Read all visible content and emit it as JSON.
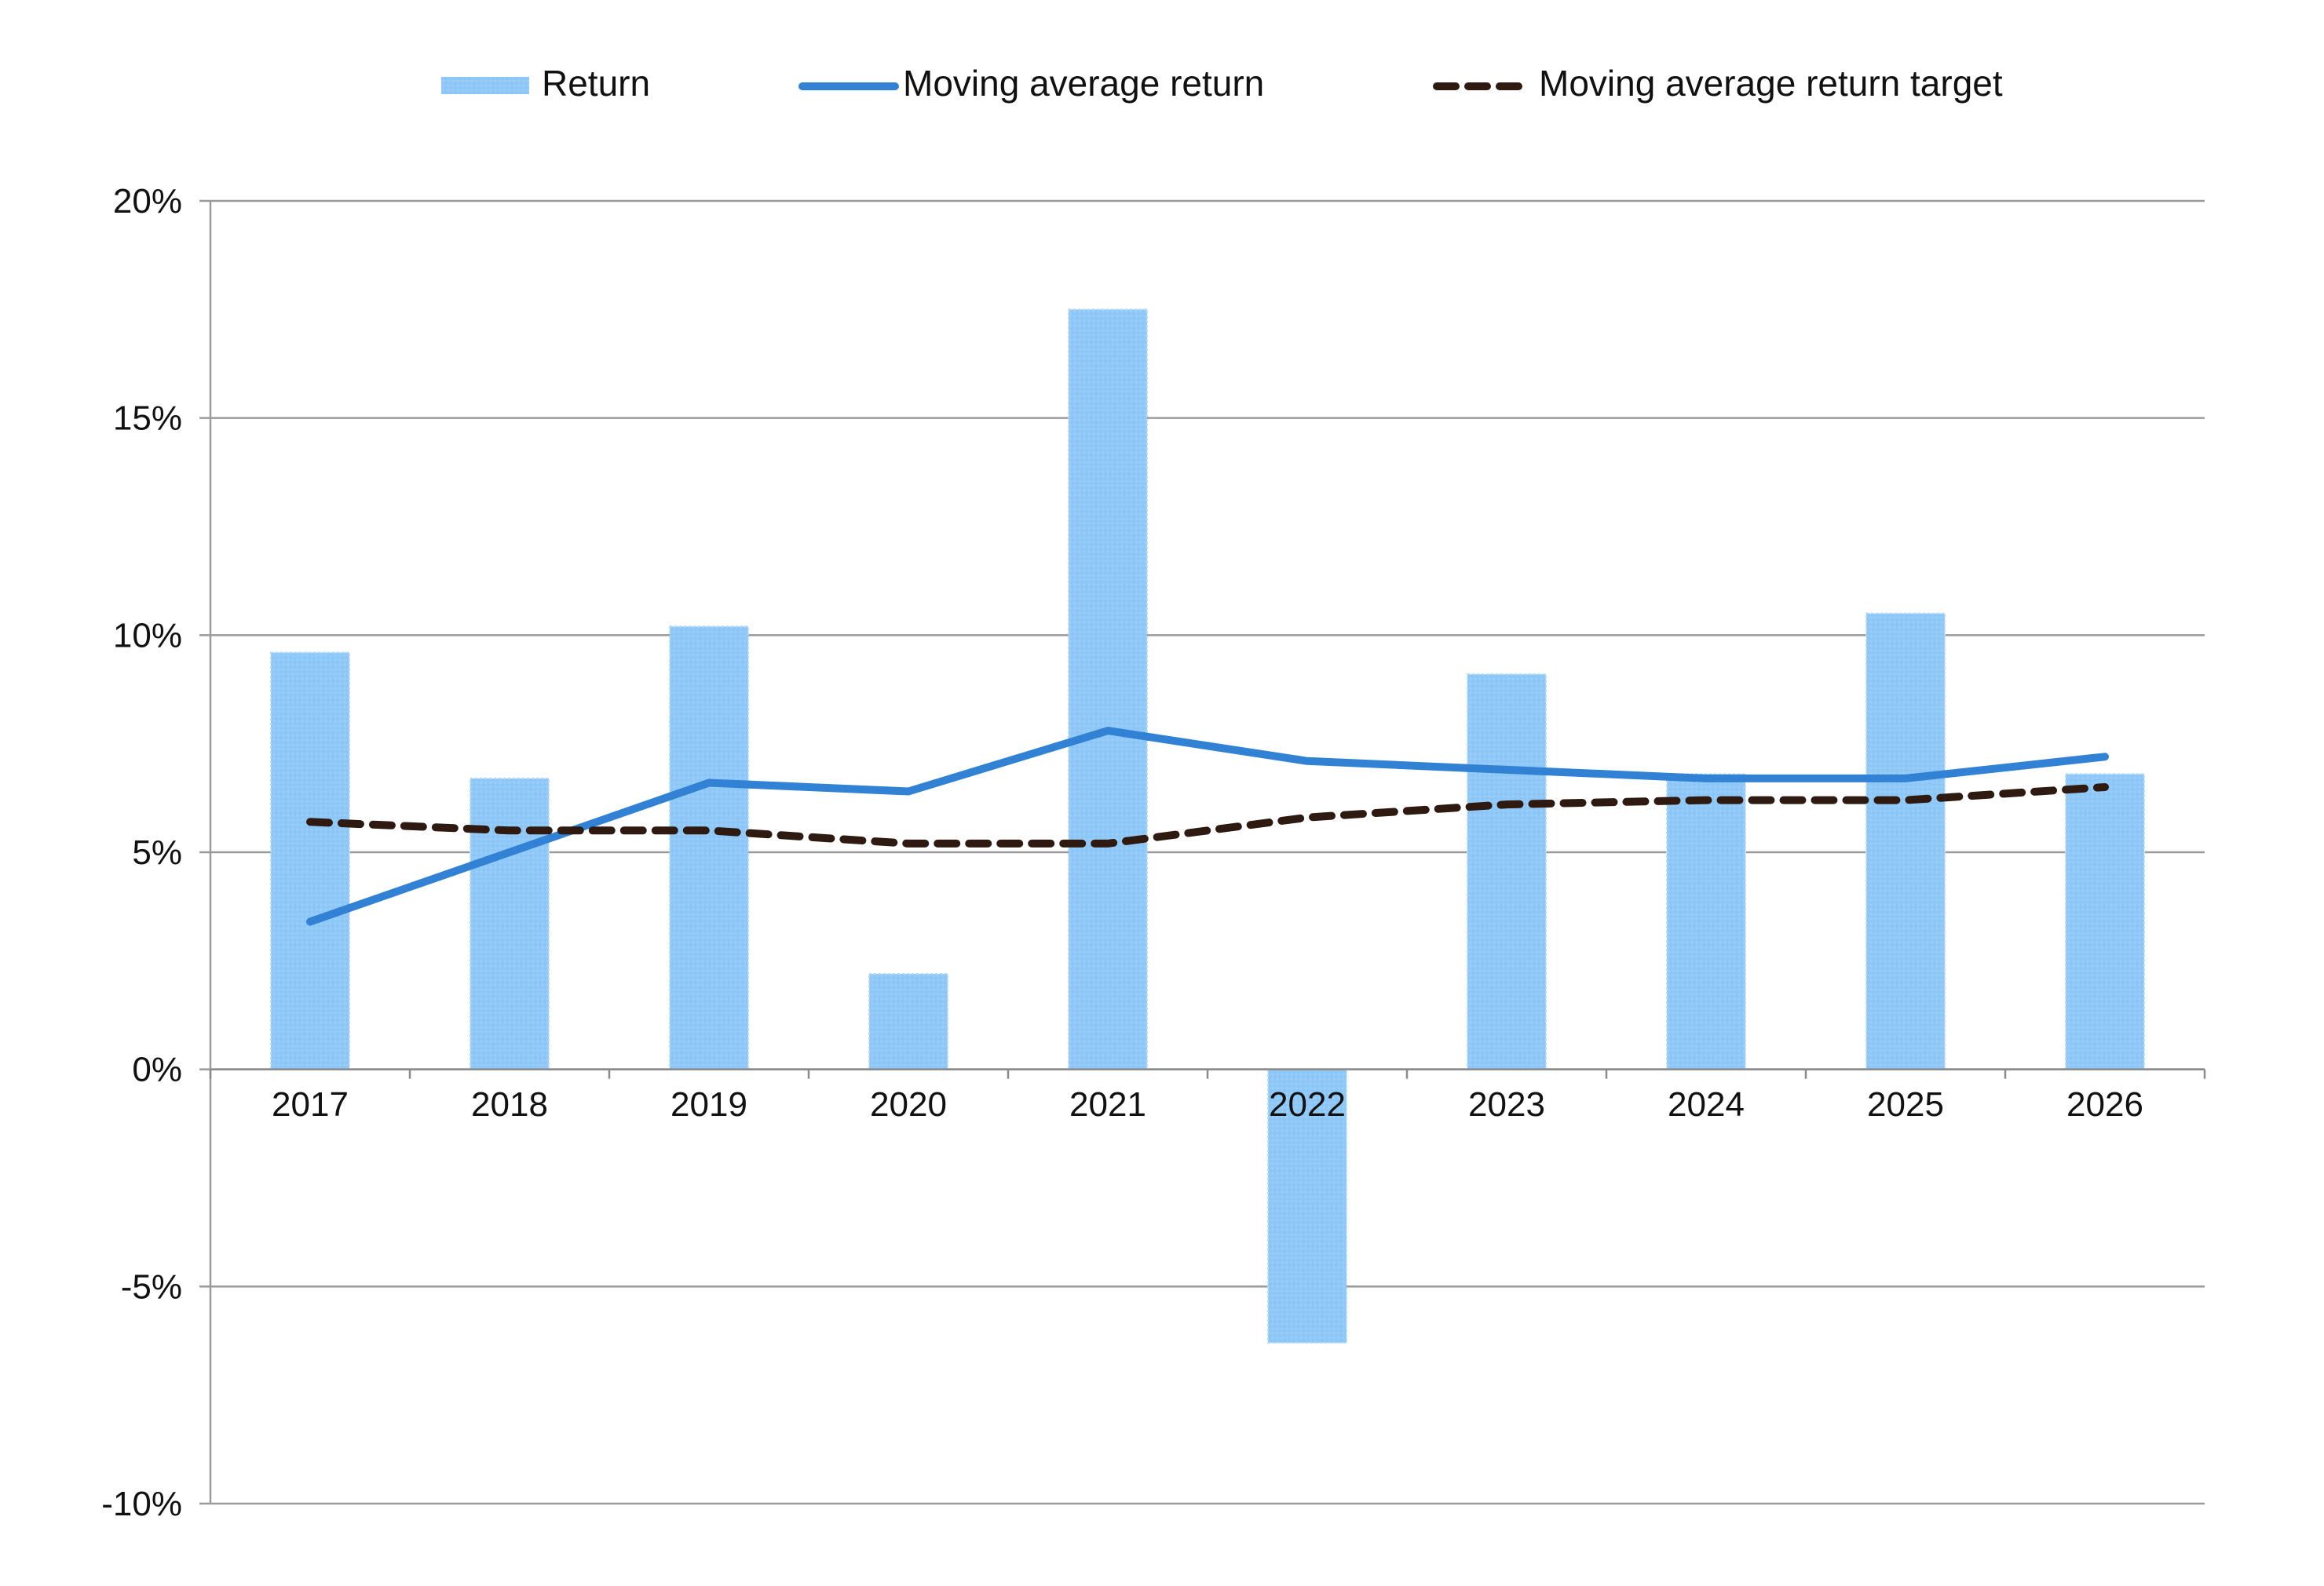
{
  "chart_data": {
    "type": "bar",
    "categories": [
      "2017",
      "2018",
      "2019",
      "2020",
      "2021",
      "2022",
      "2023",
      "2024",
      "2025",
      "2026"
    ],
    "series": [
      {
        "name": "Return",
        "type": "bar",
        "values": [
          9.6,
          6.7,
          10.2,
          2.2,
          17.5,
          -6.3,
          9.1,
          6.8,
          10.5,
          6.8
        ],
        "color": "#90c9f8"
      },
      {
        "name": "Moving average return",
        "type": "line",
        "values": [
          3.4,
          5.0,
          6.6,
          6.4,
          7.8,
          7.1,
          6.9,
          6.7,
          6.7,
          7.2
        ],
        "color": "#3182d4"
      },
      {
        "name": "Moving average return target",
        "type": "line",
        "dashed": true,
        "values": [
          5.7,
          5.5,
          5.5,
          5.2,
          5.2,
          5.8,
          6.1,
          6.2,
          6.2,
          6.5
        ],
        "color": "#2e1a10"
      }
    ],
    "y_ticks": [
      "20%",
      "15%",
      "10%",
      "5%",
      "0%",
      "-5%",
      "-10%"
    ],
    "ylim": [
      -10,
      20
    ],
    "title": "",
    "xlabel": "",
    "ylabel": "",
    "grid": true,
    "legend_position": "top"
  }
}
